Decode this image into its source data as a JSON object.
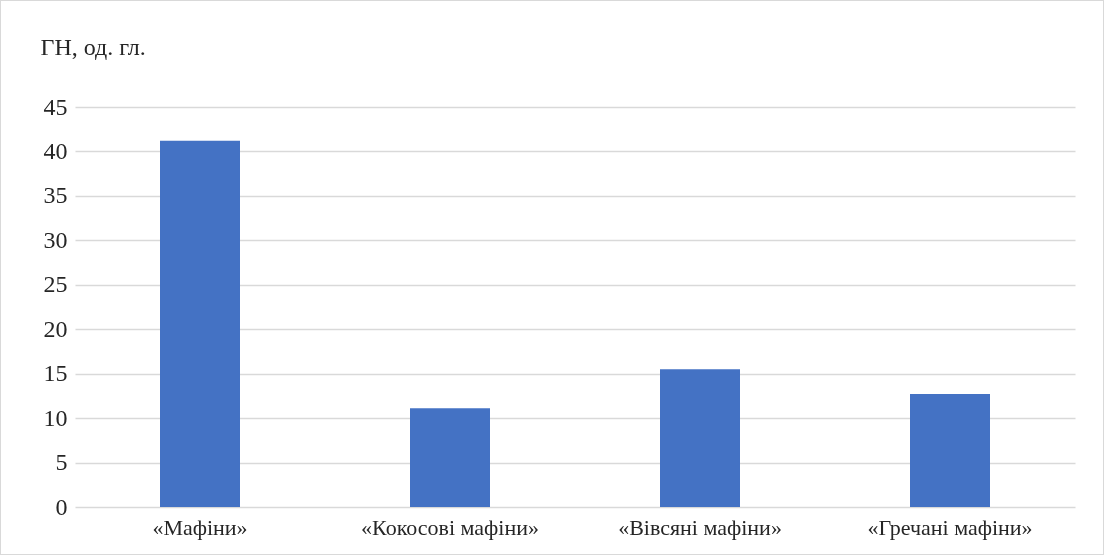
{
  "chart_data": {
    "type": "bar",
    "ylabel": "ГН, од. гл.",
    "categories": [
      "«Мафіни»",
      "«Кокосові мафіни»",
      "«Вівсяні мафіни»",
      "«Гречані мафіни»"
    ],
    "values": [
      41.2,
      11.1,
      15.5,
      12.7
    ],
    "color": "#4472c4",
    "ylim": [
      0,
      45
    ],
    "yticks": [
      0,
      5,
      10,
      15,
      20,
      25,
      30,
      35,
      40,
      45
    ],
    "grid": "y"
  }
}
